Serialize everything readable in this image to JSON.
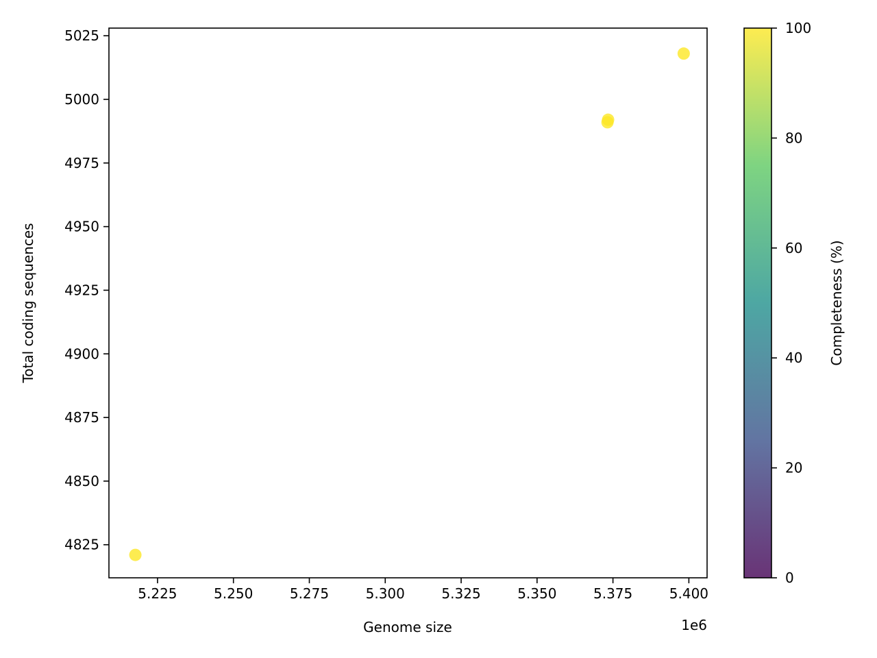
{
  "chart_data": {
    "type": "scatter",
    "title": "",
    "xlabel": "Genome size",
    "ylabel": "Total coding sequences",
    "x_offset_label": "1e6",
    "xlim": [
      5209000,
      5406000
    ],
    "ylim": [
      4812,
      5028
    ],
    "x_ticks": [
      5225000,
      5250000,
      5275000,
      5300000,
      5325000,
      5350000,
      5375000,
      5400000
    ],
    "x_tick_labels": [
      "5.225",
      "5.250",
      "5.275",
      "5.300",
      "5.325",
      "5.350",
      "5.375",
      "5.400"
    ],
    "y_ticks": [
      4825,
      4850,
      4875,
      4900,
      4925,
      4950,
      4975,
      5000,
      5025
    ],
    "y_tick_labels": [
      "4825",
      "4850",
      "4875",
      "4900",
      "4925",
      "4950",
      "4975",
      "5000",
      "5025"
    ],
    "points": [
      {
        "x": 5217700,
        "y": 4821,
        "completeness": 100
      },
      {
        "x": 5373200,
        "y": 4991,
        "completeness": 100
      },
      {
        "x": 5373400,
        "y": 4992,
        "completeness": 100
      },
      {
        "x": 5398300,
        "y": 5018,
        "completeness": 100
      }
    ],
    "marker_opacity": 0.8,
    "colorbar": {
      "label": "Completeness (%)",
      "range": [
        0,
        100
      ],
      "ticks": [
        0,
        20,
        40,
        60,
        80,
        100
      ],
      "tick_labels": [
        "0",
        "20",
        "40",
        "60",
        "80",
        "100"
      ],
      "colormap": [
        "#440154",
        "#3b528b",
        "#21918c",
        "#5ec962",
        "#fde725"
      ]
    },
    "grid": false
  }
}
